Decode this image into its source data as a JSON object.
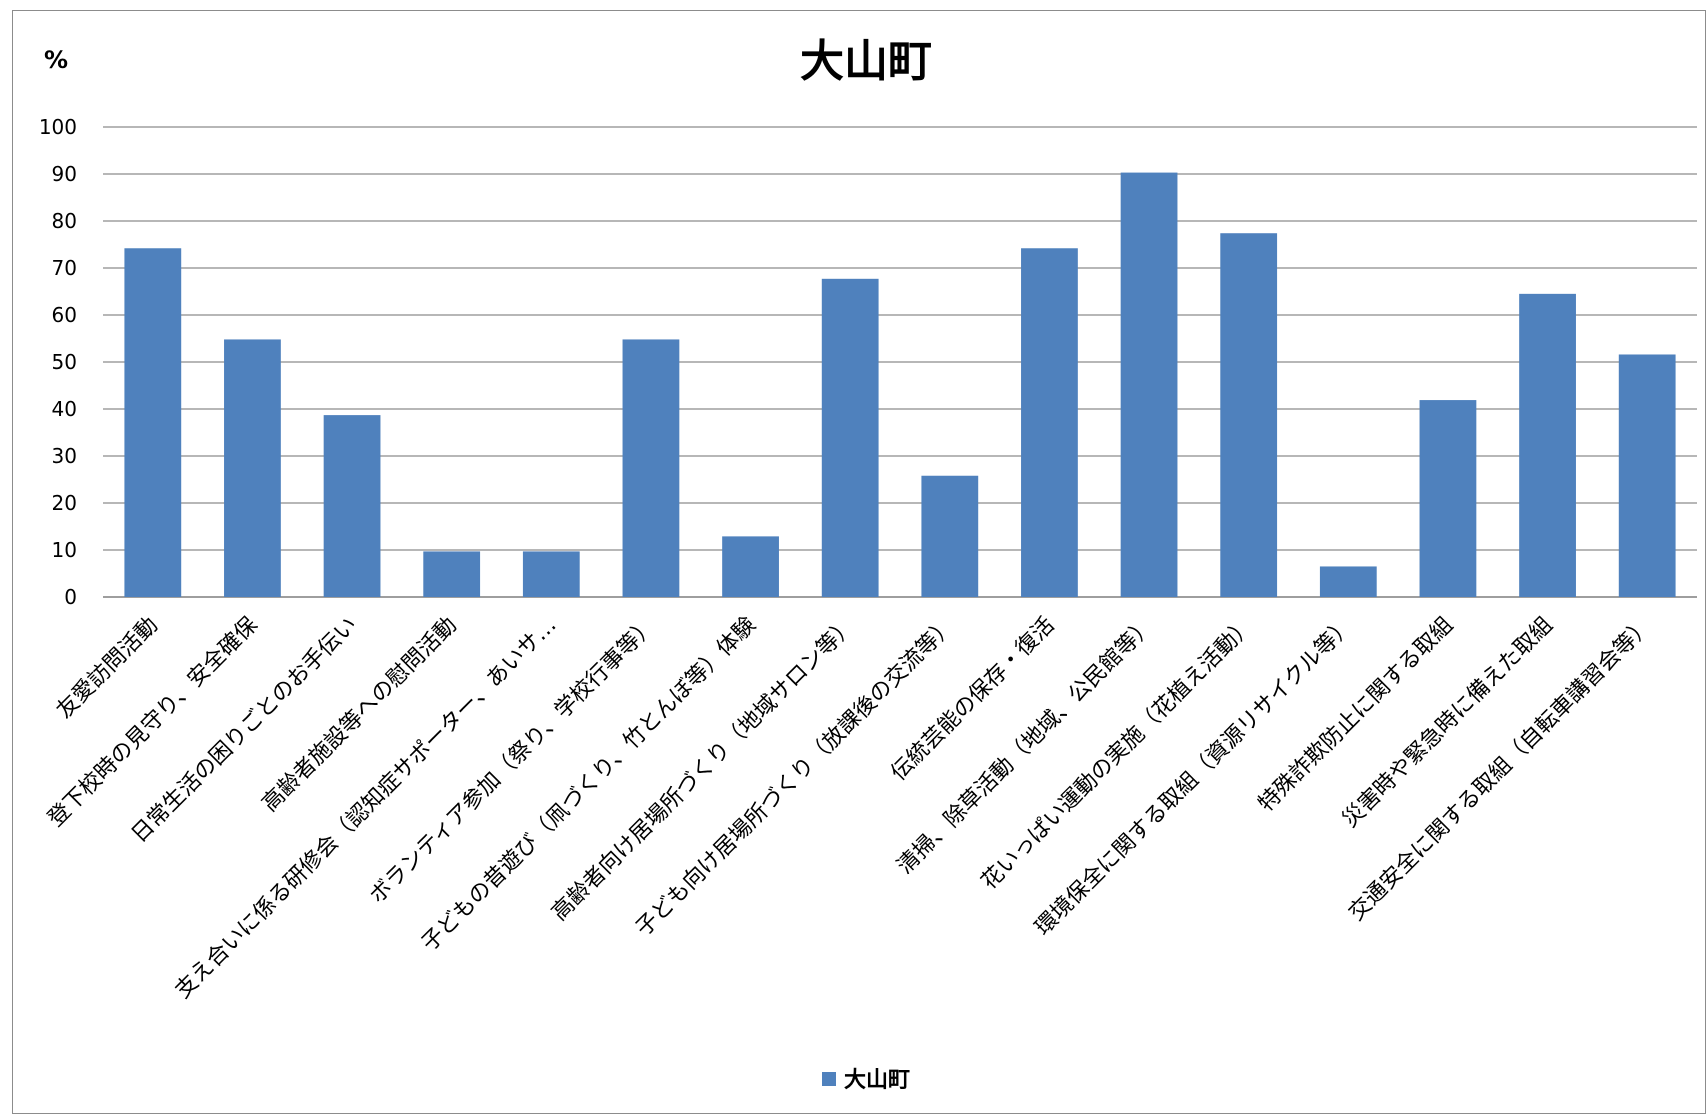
{
  "chart_data": {
    "type": "bar",
    "title": "大山町",
    "unit_label": "%",
    "ylim": [
      0,
      100
    ],
    "yticks": [
      "0",
      "10",
      "20",
      "30",
      "40",
      "50",
      "60",
      "70",
      "80",
      "90",
      "100"
    ],
    "grid": true,
    "legend_position": "bottom",
    "categories": [
      "友愛訪問活動",
      "登下校時の見守り、安全確保",
      "日常生活の困りごとのお手伝い",
      "高齢者施設等への慰問活動",
      "支え合いに係る研修会（認知症サポーター、あいサ…",
      "ボランティア参加（祭り、学校行事等）",
      "子どもの昔遊び（凧づくり、竹とんぼ等）体験",
      "高齢者向け居場所づくり（地域サロン等）",
      "子ども向け居場所づくり（放課後の交流等）",
      "伝統芸能の保存・復活",
      "清掃、除草活動（地域、公民館等）",
      "花いっぱい運動の実施（花植え活動）",
      "環境保全に関する取組（資源リサイクル等）",
      "特殊詐欺防止に関する取組",
      "災害時や緊急時に備えた取組",
      "交通安全に関する取組（自転車講習会等）"
    ],
    "series": [
      {
        "name": "大山町",
        "color": "#4f81bd",
        "values": [
          74.2,
          54.8,
          38.7,
          9.7,
          9.7,
          54.8,
          12.9,
          67.7,
          25.8,
          74.2,
          90.3,
          77.4,
          6.5,
          41.9,
          64.5,
          51.6
        ]
      }
    ]
  }
}
